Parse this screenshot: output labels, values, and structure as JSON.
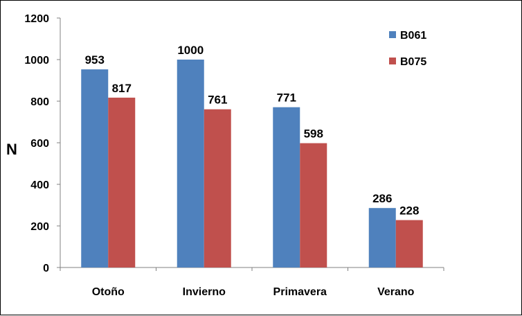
{
  "chart_data": {
    "type": "bar",
    "categories": [
      "Otoño",
      "Invierno",
      "Primavera",
      "Verano"
    ],
    "series": [
      {
        "name": "B061",
        "values": [
          953,
          1000,
          771,
          286
        ],
        "color": "#4F81BD"
      },
      {
        "name": "B075",
        "values": [
          817,
          761,
          598,
          228
        ],
        "color": "#C0504D"
      }
    ],
    "title": "",
    "xlabel": "",
    "ylabel": "N",
    "ylim": [
      0,
      1200
    ],
    "yticks": [
      0,
      200,
      400,
      600,
      800,
      1000,
      1200
    ],
    "grid": false,
    "legend": "top-right"
  }
}
